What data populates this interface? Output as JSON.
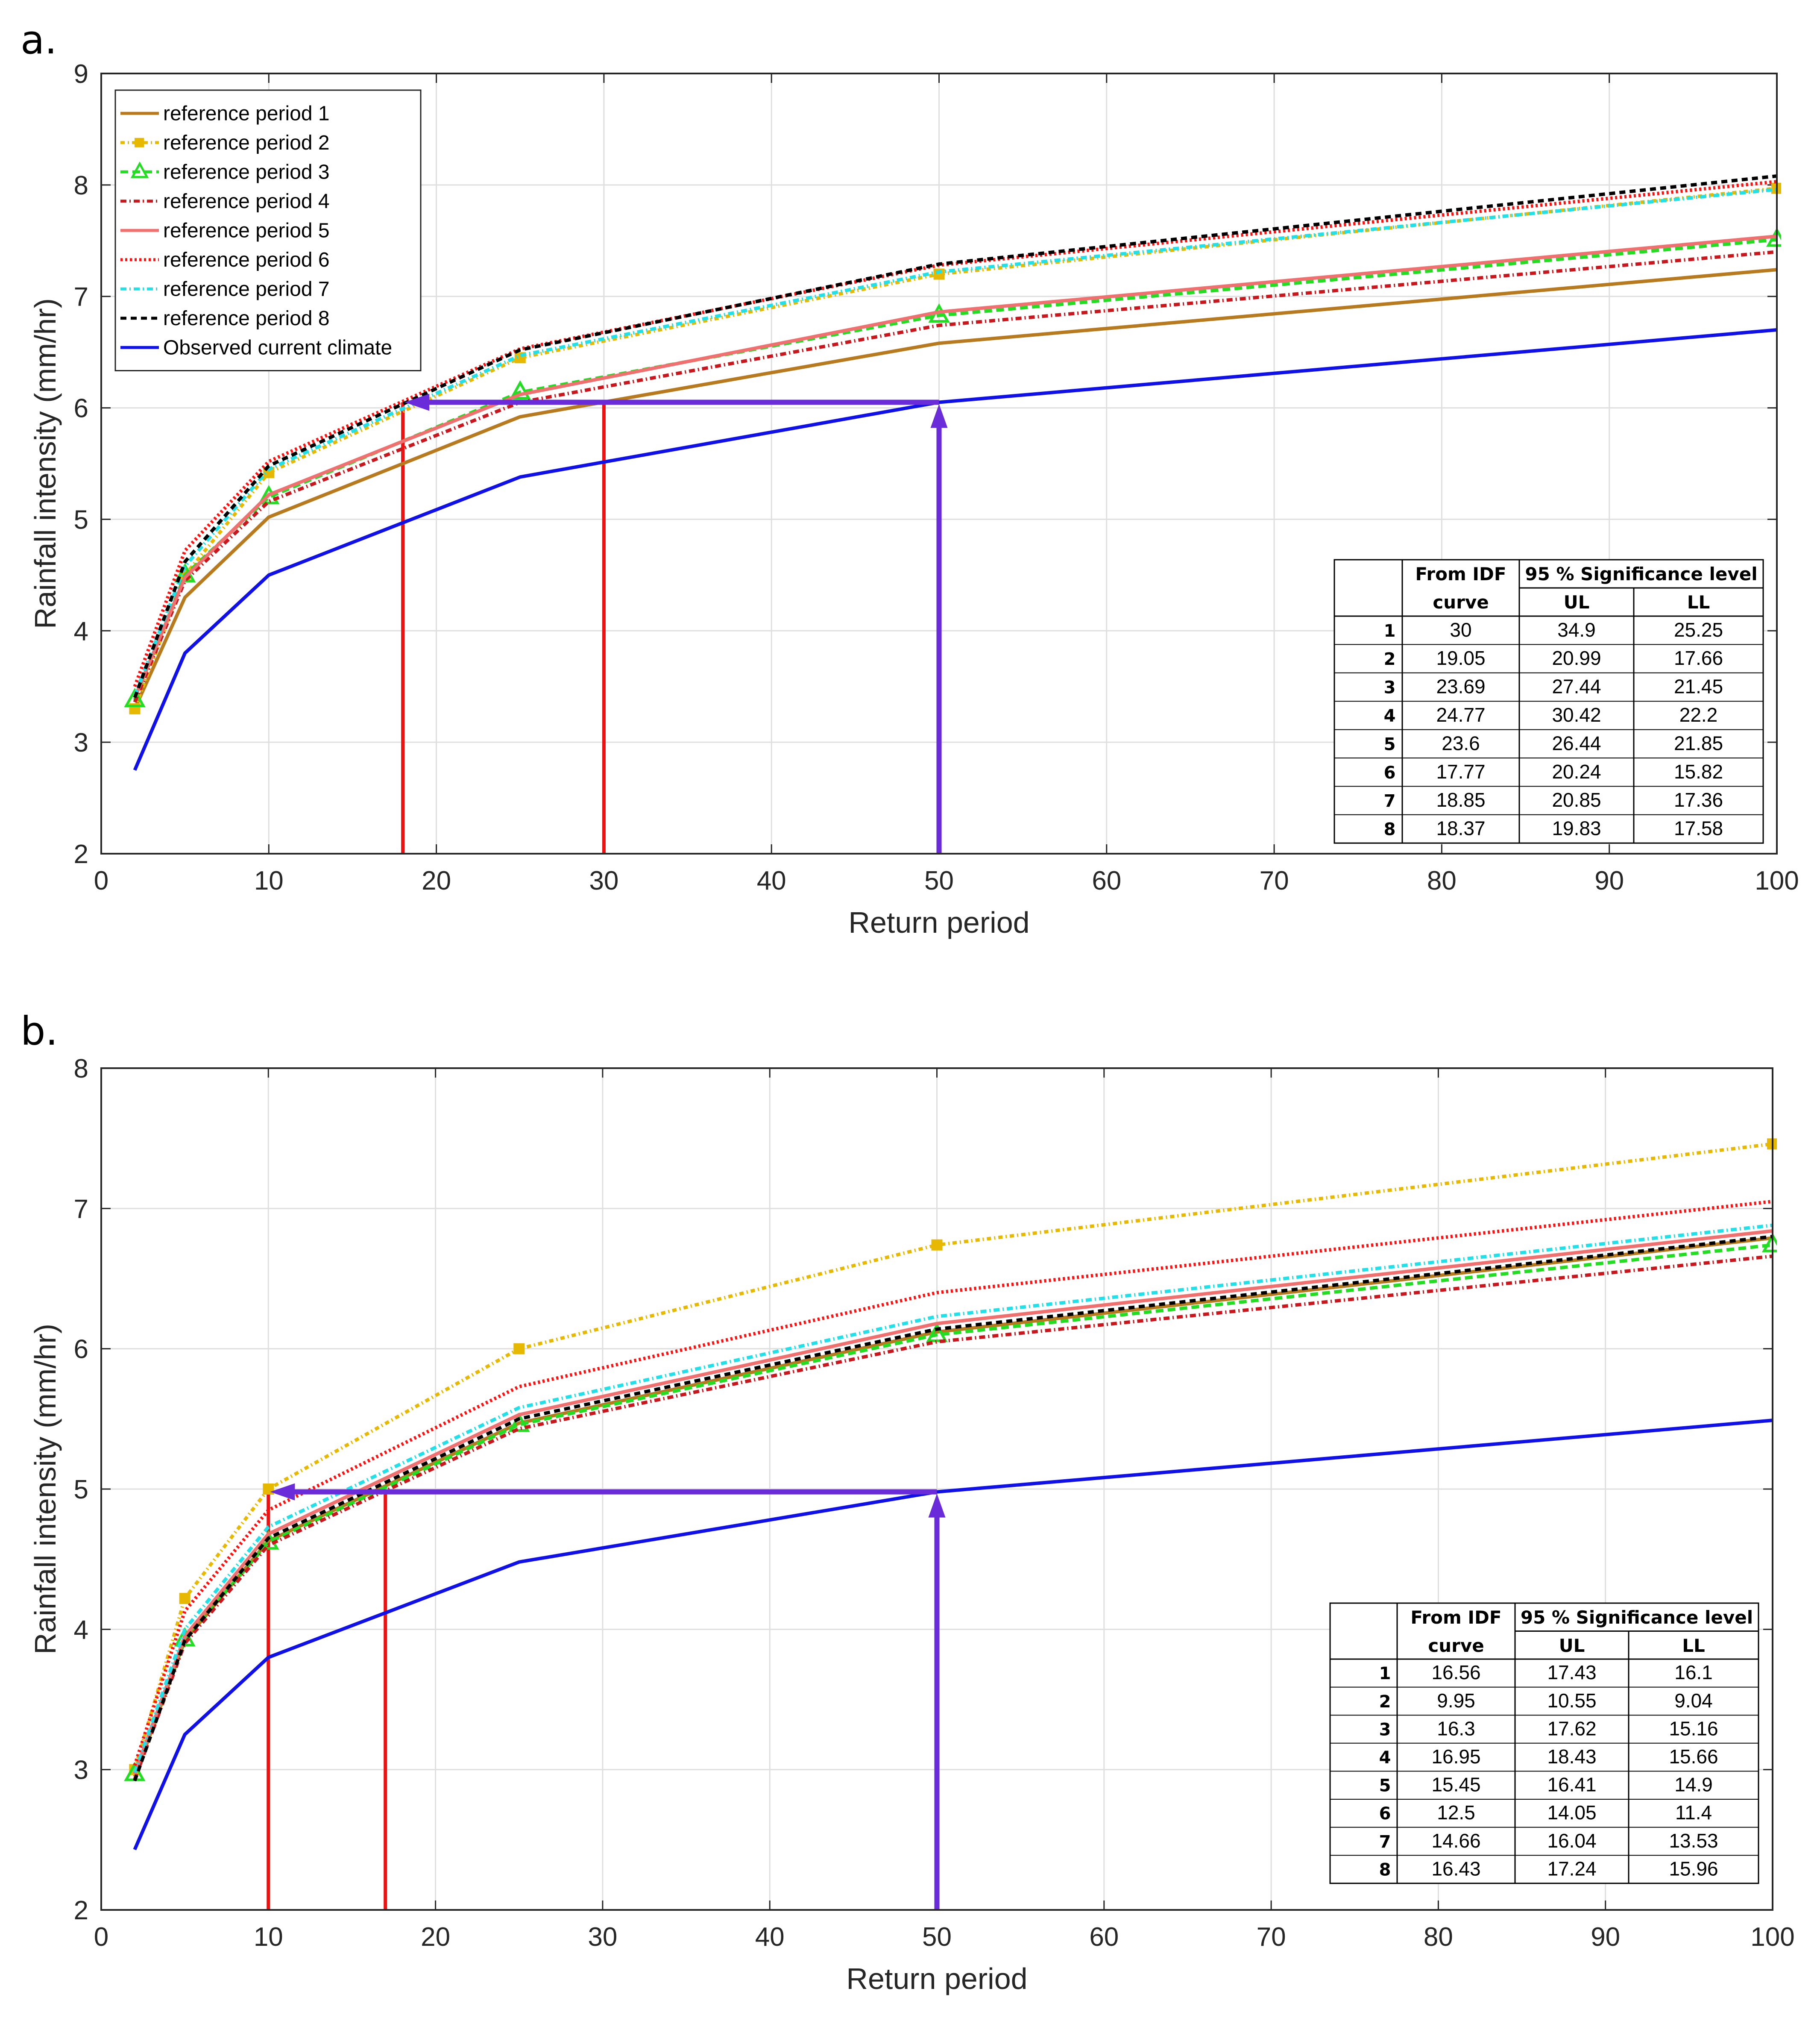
{
  "chart_data": [
    {
      "type": "line",
      "panel_label": "a.",
      "xlabel": "Return period",
      "ylabel": "Rainfall intensity (mm/hr)",
      "xlim": [
        0,
        100
      ],
      "ylim": [
        2,
        9
      ],
      "xticks": [
        0,
        10,
        20,
        30,
        40,
        50,
        60,
        70,
        80,
        90,
        100
      ],
      "yticks": [
        2,
        3,
        4,
        5,
        6,
        7,
        8,
        9
      ],
      "grid": true,
      "legend_position": "top-left",
      "x": [
        2,
        5,
        10,
        25,
        50,
        100
      ],
      "series": [
        {
          "name": "reference period 1",
          "color": "#B87A1E",
          "dash": "",
          "marker": "none",
          "values": [
            3.3,
            4.3,
            5.02,
            5.92,
            6.58,
            7.24
          ]
        },
        {
          "name": "reference period 2",
          "color": "#E6B800",
          "dash": "10,7,3,7",
          "marker": "square",
          "values": [
            3.3,
            4.5,
            5.42,
            6.45,
            7.2,
            7.97
          ]
        },
        {
          "name": "reference period 3",
          "color": "#22DD22",
          "dash": "18,10",
          "marker": "triangle",
          "values": [
            3.38,
            4.5,
            5.2,
            6.14,
            6.83,
            7.51
          ]
        },
        {
          "name": "reference period 4",
          "color": "#C8181E",
          "dash": "14,7,3,7",
          "marker": "none",
          "values": [
            3.36,
            4.45,
            5.16,
            6.05,
            6.74,
            7.4
          ]
        },
        {
          "name": "reference period 5",
          "color": "#F07070",
          "dash": "",
          "marker": "none",
          "values": [
            3.4,
            4.48,
            5.22,
            6.12,
            6.86,
            7.54
          ]
        },
        {
          "name": "reference period 6",
          "color": "#FF1010",
          "dash": "5,6",
          "marker": "none",
          "values": [
            3.5,
            4.72,
            5.52,
            6.53,
            7.28,
            8.03
          ]
        },
        {
          "name": "reference period 7",
          "color": "#22E0E8",
          "dash": "14,7,3,7",
          "marker": "none",
          "values": [
            3.42,
            4.58,
            5.45,
            6.47,
            7.22,
            7.96
          ]
        },
        {
          "name": "reference period 8",
          "color": "#000000",
          "dash": "14,10",
          "marker": "none",
          "values": [
            3.4,
            4.62,
            5.48,
            6.52,
            7.29,
            8.08
          ]
        },
        {
          "name": "Observed current climate",
          "color": "#1010E8",
          "dash": "",
          "marker": "none",
          "values": [
            2.75,
            3.8,
            4.5,
            5.38,
            6.05,
            6.7
          ]
        }
      ],
      "annotations": {
        "arrow_color": "#6A2BD8",
        "vertical_arrow": {
          "x": 50,
          "y_from": 2,
          "y_to": 6.05
        },
        "horizontal_arrow": {
          "y": 6.05,
          "x_from": 50,
          "x_to": 18
        },
        "red_line_color": "#EE1111",
        "red_lines": [
          {
            "x": 18,
            "y_top": 6.05
          },
          {
            "x": 30,
            "y_top": 6.05
          }
        ]
      },
      "table": {
        "headers": {
          "idf_line1": "From IDF",
          "idf_line2": "curve",
          "sig": "95 % Significance level",
          "ul": "UL",
          "ll": "LL"
        },
        "rows": [
          {
            "id": "1",
            "idf": "30",
            "ul": "34.9",
            "ll": "25.25"
          },
          {
            "id": "2",
            "idf": "19.05",
            "ul": "20.99",
            "ll": "17.66"
          },
          {
            "id": "3",
            "idf": "23.69",
            "ul": "27.44",
            "ll": "21.45"
          },
          {
            "id": "4",
            "idf": "24.77",
            "ul": "30.42",
            "ll": "22.2"
          },
          {
            "id": "5",
            "idf": "23.6",
            "ul": "26.44",
            "ll": "21.85"
          },
          {
            "id": "6",
            "idf": "17.77",
            "ul": "20.24",
            "ll": "15.82"
          },
          {
            "id": "7",
            "idf": "18.85",
            "ul": "20.85",
            "ll": "17.36"
          },
          {
            "id": "8",
            "idf": "18.37",
            "ul": "19.83",
            "ll": "17.58"
          }
        ]
      }
    },
    {
      "type": "line",
      "panel_label": "b.",
      "xlabel": "Return period",
      "ylabel": "Rainfall intensity (mm/hr)",
      "xlim": [
        0,
        100
      ],
      "ylim": [
        2,
        8
      ],
      "xticks": [
        0,
        10,
        20,
        30,
        40,
        50,
        60,
        70,
        80,
        90,
        100
      ],
      "yticks": [
        2,
        3,
        4,
        5,
        6,
        7,
        8
      ],
      "grid": true,
      "legend_position": "none",
      "x": [
        2,
        5,
        10,
        25,
        50,
        100
      ],
      "series": [
        {
          "name": "reference period 1",
          "color": "#B87A1E",
          "dash": "",
          "marker": "none",
          "values": [
            2.95,
            3.92,
            4.63,
            5.47,
            6.12,
            6.79
          ]
        },
        {
          "name": "reference period 2",
          "color": "#E6B800",
          "dash": "10,7,3,7",
          "marker": "square",
          "values": [
            3.0,
            4.22,
            5.0,
            6.0,
            6.74,
            7.46
          ]
        },
        {
          "name": "reference period 3",
          "color": "#22DD22",
          "dash": "18,10",
          "marker": "triangle",
          "values": [
            2.97,
            3.93,
            4.62,
            5.46,
            6.1,
            6.74
          ]
        },
        {
          "name": "reference period 4",
          "color": "#C8181E",
          "dash": "14,7,3,7",
          "marker": "none",
          "values": [
            2.93,
            3.9,
            4.6,
            5.43,
            6.05,
            6.66
          ]
        },
        {
          "name": "reference period 5",
          "color": "#F07070",
          "dash": "",
          "marker": "none",
          "values": [
            2.97,
            3.95,
            4.68,
            5.53,
            6.18,
            6.84
          ]
        },
        {
          "name": "reference period 6",
          "color": "#FF1010",
          "dash": "5,6",
          "marker": "none",
          "values": [
            3.03,
            4.13,
            4.85,
            5.73,
            6.4,
            7.05
          ]
        },
        {
          "name": "reference period 7",
          "color": "#22E0E8",
          "dash": "14,7,3,7",
          "marker": "none",
          "values": [
            2.98,
            4.0,
            4.73,
            5.58,
            6.23,
            6.88
          ]
        },
        {
          "name": "reference period 8",
          "color": "#000000",
          "dash": "14,10",
          "marker": "none",
          "values": [
            2.92,
            3.92,
            4.65,
            5.5,
            6.14,
            6.8
          ]
        },
        {
          "name": "Observed current climate",
          "color": "#1010E8",
          "dash": "",
          "marker": "none",
          "values": [
            2.43,
            3.25,
            3.8,
            4.48,
            4.98,
            5.49
          ]
        }
      ],
      "annotations": {
        "arrow_color": "#6A2BD8",
        "vertical_arrow": {
          "x": 50,
          "y_from": 2,
          "y_to": 4.98
        },
        "horizontal_arrow": {
          "y": 4.98,
          "x_from": 50,
          "x_to": 10
        },
        "red_line_color": "#EE1111",
        "red_lines": [
          {
            "x": 10,
            "y_top": 4.98
          },
          {
            "x": 17,
            "y_top": 4.98
          }
        ]
      },
      "table": {
        "headers": {
          "idf_line1": "From IDF",
          "idf_line2": "curve",
          "sig": "95 % Significance level",
          "ul": "UL",
          "ll": "LL"
        },
        "rows": [
          {
            "id": "1",
            "idf": "16.56",
            "ul": "17.43",
            "ll": "16.1"
          },
          {
            "id": "2",
            "idf": "9.95",
            "ul": "10.55",
            "ll": "9.04"
          },
          {
            "id": "3",
            "idf": "16.3",
            "ul": "17.62",
            "ll": "15.16"
          },
          {
            "id": "4",
            "idf": "16.95",
            "ul": "18.43",
            "ll": "15.66"
          },
          {
            "id": "5",
            "idf": "15.45",
            "ul": "16.41",
            "ll": "14.9"
          },
          {
            "id": "6",
            "idf": "12.5",
            "ul": "14.05",
            "ll": "11.4"
          },
          {
            "id": "7",
            "idf": "14.66",
            "ul": "16.04",
            "ll": "13.53"
          },
          {
            "id": "8",
            "idf": "16.43",
            "ul": "17.24",
            "ll": "15.96"
          }
        ]
      }
    }
  ]
}
